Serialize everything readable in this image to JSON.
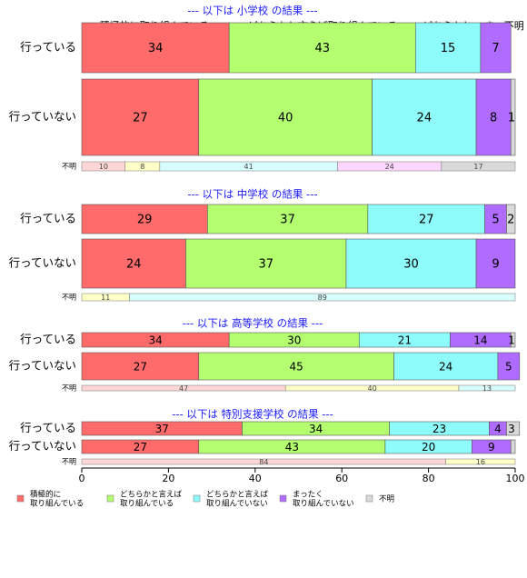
{
  "chart_data": {
    "type": "bar",
    "orientation": "horizontal",
    "stacked": "percent",
    "xlim": [
      0,
      100
    ],
    "x_ticks": [
      "0",
      "20",
      "40",
      "60",
      "80",
      "100"
    ],
    "category_header_labels": [
      "積極的に取り組んでいる",
      "どちらかと言えば取り組んでいる",
      "どちらかと..",
      "まっ不明"
    ],
    "series": [
      {
        "name": "積極的に\n取り組んでいる",
        "color": "#ff6b6b"
      },
      {
        "name": "どちらかと言えば\n取り組んでいる",
        "color": "#b3ff70"
      },
      {
        "name": "どちらかと言えば\n取り組んでいない",
        "color": "#8ffcfc"
      },
      {
        "name": "まったく\n取り組んでいない",
        "color": "#b06cff"
      },
      {
        "name": "不明",
        "color": "#d9d9d9"
      }
    ],
    "unknown_colors": [
      "#ffd6d6",
      "#ffffc8",
      "#d8fdfd",
      "#fcd6fc",
      "#d9d9d9"
    ],
    "panels": [
      {
        "title": "--- 以下は 小学校 の結果 ---",
        "rows": [
          {
            "label": "行っている",
            "values": [
              34,
              43,
              15,
              7,
              0
            ],
            "labels": [
              "34",
              "43",
              "15",
              "7",
              ""
            ]
          },
          {
            "label": "行っていない",
            "values": [
              27,
              40,
              24,
              8,
              1
            ],
            "labels": [
              "27",
              "40",
              "24",
              "8",
              "1"
            ]
          }
        ],
        "unknown": {
          "label": "不明",
          "values": [
            10,
            8,
            41,
            24,
            17
          ],
          "labels": [
            "10",
            "8",
            "41",
            "24",
            "17"
          ]
        }
      },
      {
        "title": "--- 以下は 中学校 の結果 ---",
        "rows": [
          {
            "label": "行っている",
            "values": [
              29,
              37,
              27,
              5,
              2
            ],
            "labels": [
              "29",
              "37",
              "27",
              "5",
              "2"
            ]
          },
          {
            "label": "行っていない",
            "values": [
              24,
              37,
              30,
              9,
              0
            ],
            "labels": [
              "24",
              "37",
              "30",
              "9",
              ""
            ]
          }
        ],
        "unknown": {
          "label": "不明",
          "values": [
            0,
            11,
            89,
            0,
            0
          ],
          "labels": [
            "",
            "11",
            "89",
            "",
            ""
          ]
        }
      },
      {
        "title": "--- 以下は 高等学校 の結果 ---",
        "rows": [
          {
            "label": "行っている",
            "values": [
              34,
              30,
              21,
              14,
              1
            ],
            "labels": [
              "34",
              "30",
              "21",
              "14",
              "1"
            ]
          },
          {
            "label": "行っていない",
            "values": [
              27,
              45,
              24,
              5,
              0
            ],
            "labels": [
              "27",
              "45",
              "24",
              "5",
              ""
            ]
          }
        ],
        "unknown": {
          "label": "不明",
          "values": [
            47,
            40,
            13,
            0,
            0
          ],
          "labels": [
            "47",
            "40",
            "13",
            "",
            ""
          ]
        }
      },
      {
        "title": "--- 以下は 特別支援学校 の結果 ---",
        "rows": [
          {
            "label": "行っている",
            "values": [
              37,
              34,
              23,
              4,
              3
            ],
            "labels": [
              "37",
              "34",
              "23",
              "4",
              "3"
            ]
          },
          {
            "label": "行っていない",
            "values": [
              27,
              43,
              20,
              9,
              1
            ],
            "labels": [
              "27",
              "43",
              "20",
              "9",
              ""
            ]
          }
        ],
        "unknown": {
          "label": "不明",
          "values": [
            84,
            16,
            0,
            0,
            0
          ],
          "labels": [
            "84",
            "16",
            "",
            "",
            ""
          ]
        }
      }
    ]
  }
}
